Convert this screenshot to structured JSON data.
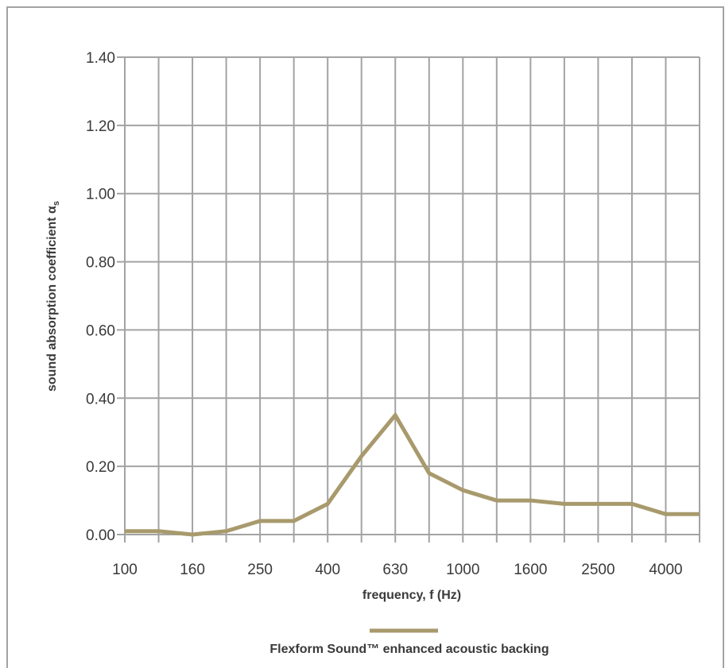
{
  "chart_data": {
    "type": "line",
    "x": [
      "100",
      "125",
      "160",
      "200",
      "250",
      "315",
      "400",
      "500",
      "630",
      "800",
      "1000",
      "1250",
      "1600",
      "2000",
      "2500",
      "3150",
      "4000",
      "5000"
    ],
    "x_tick_labels": [
      "100",
      "160",
      "250",
      "400",
      "630",
      "1000",
      "1600",
      "2500",
      "4000"
    ],
    "y_tick_labels": [
      "0.00",
      "0.20",
      "0.40",
      "0.60",
      "0.80",
      "1.00",
      "1.20",
      "1.40"
    ],
    "series": [
      {
        "name": "Flexform Sound™ enhanced acoustic backing",
        "values": [
          0.01,
          0.01,
          0.0,
          0.01,
          0.04,
          0.04,
          0.09,
          0.23,
          0.35,
          0.18,
          0.13,
          0.1,
          0.1,
          0.09,
          0.09,
          0.09,
          0.06,
          0.06
        ]
      }
    ],
    "xlabel": "frequency, f (Hz)",
    "ylabel": "sound absorption coefficient α",
    "ylabel_subscript": "s",
    "ylim": [
      0,
      1.4
    ],
    "grid": true,
    "legend_position": "bottom-center",
    "colors": {
      "series": "#a89a6c",
      "grid": "#a3a3a3",
      "text": "#3a3a3a"
    }
  }
}
